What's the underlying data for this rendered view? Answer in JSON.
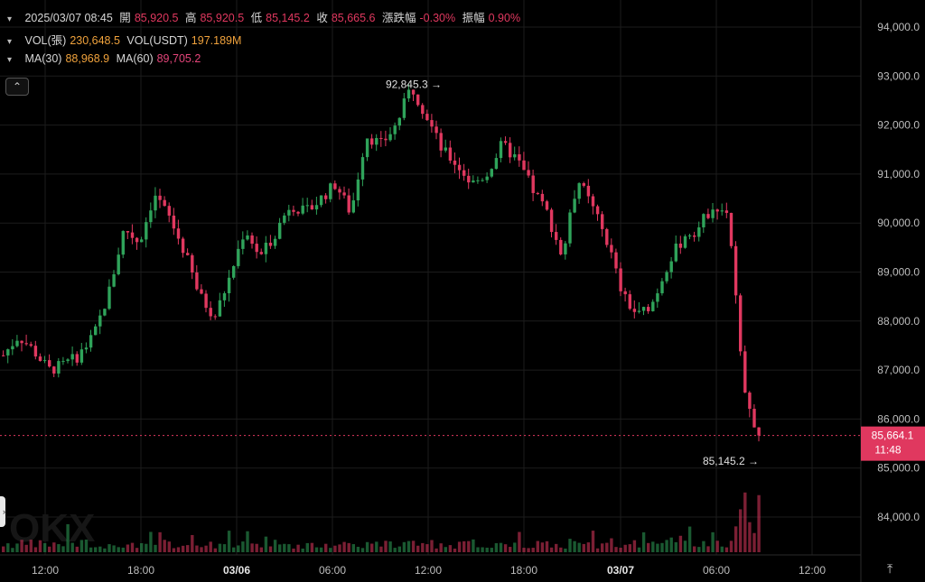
{
  "legend": {
    "row1": {
      "date": "2025/03/07 08:45",
      "open_label": "開",
      "open": "85,920.5",
      "high_label": "高",
      "high": "85,920.5",
      "low_label": "低",
      "low": "85,145.2",
      "close_label": "收",
      "close": "85,665.6",
      "change_label": "漲跌幅",
      "change": "-0.30%",
      "amp_label": "振幅",
      "amp": "0.90%"
    },
    "row2": {
      "vol_label": "VOL(張)",
      "vol": "230,648.5",
      "volu_label": "VOL(USDT)",
      "volu": "197.189M"
    },
    "row3": {
      "ma30_label": "MA(30)",
      "ma30": "88,968.9",
      "ma60_label": "MA(60)",
      "ma60": "89,705.2"
    }
  },
  "icons": {
    "chevron": "chevron-down-icon",
    "collapse": "chevron-up-icon",
    "axis_toggle": "vertical-fit-icon",
    "side": "chevron-right-icon"
  },
  "ui": {
    "collapse_glyph": "⌃",
    "axis_glyph": "⤒",
    "side_glyph": "›"
  },
  "colors": {
    "up": "#2fa35a",
    "down": "#e0385f",
    "grid": "#1c1c1c",
    "price_line": "#e0385f"
  },
  "chart_data": {
    "type": "candlestick",
    "y_ticks": [
      84000,
      85000,
      86000,
      87000,
      88000,
      89000,
      90000,
      91000,
      92000,
      93000,
      94000
    ],
    "y_tick_labels": [
      "84,000.0",
      "85,000.0",
      "86,000.0",
      "87,000.0",
      "88,000.0",
      "89,000.0",
      "90,000.0",
      "91,000.0",
      "92,000.0",
      "93,000.0",
      "94,000.0"
    ],
    "ylim": [
      83200,
      94300
    ],
    "x_tick_labels": [
      "12:00",
      "18:00",
      "03/06",
      "06:00",
      "12:00",
      "18:00",
      "03/07",
      "06:00",
      "12:00"
    ],
    "bold_x_ticks": [
      "03/06",
      "03/07"
    ],
    "annotations": {
      "high_label": "92,845.3",
      "high_value": 92845.3,
      "low_label": "85,145.2",
      "low_value": 85145.2
    },
    "current_price": {
      "value": 85664.1,
      "label": "85,664.1",
      "countdown": "11:48"
    },
    "watermark": "OKX",
    "price_path": [
      87300,
      87700,
      87400,
      87000,
      87100,
      87300,
      87700,
      88600,
      89900,
      89600,
      90600,
      90100,
      89400,
      88500,
      88100,
      88900,
      89900,
      89300,
      89800,
      90400,
      90200,
      90500,
      90800,
      90200,
      91800,
      91600,
      92000,
      92800,
      92200,
      91500,
      91200,
      90800,
      91000,
      91600,
      91300,
      90700,
      90200,
      89300,
      90900,
      90300,
      89600,
      88500,
      88100,
      88400,
      89200,
      89700,
      89900,
      90400,
      90200,
      86500,
      85665
    ]
  }
}
